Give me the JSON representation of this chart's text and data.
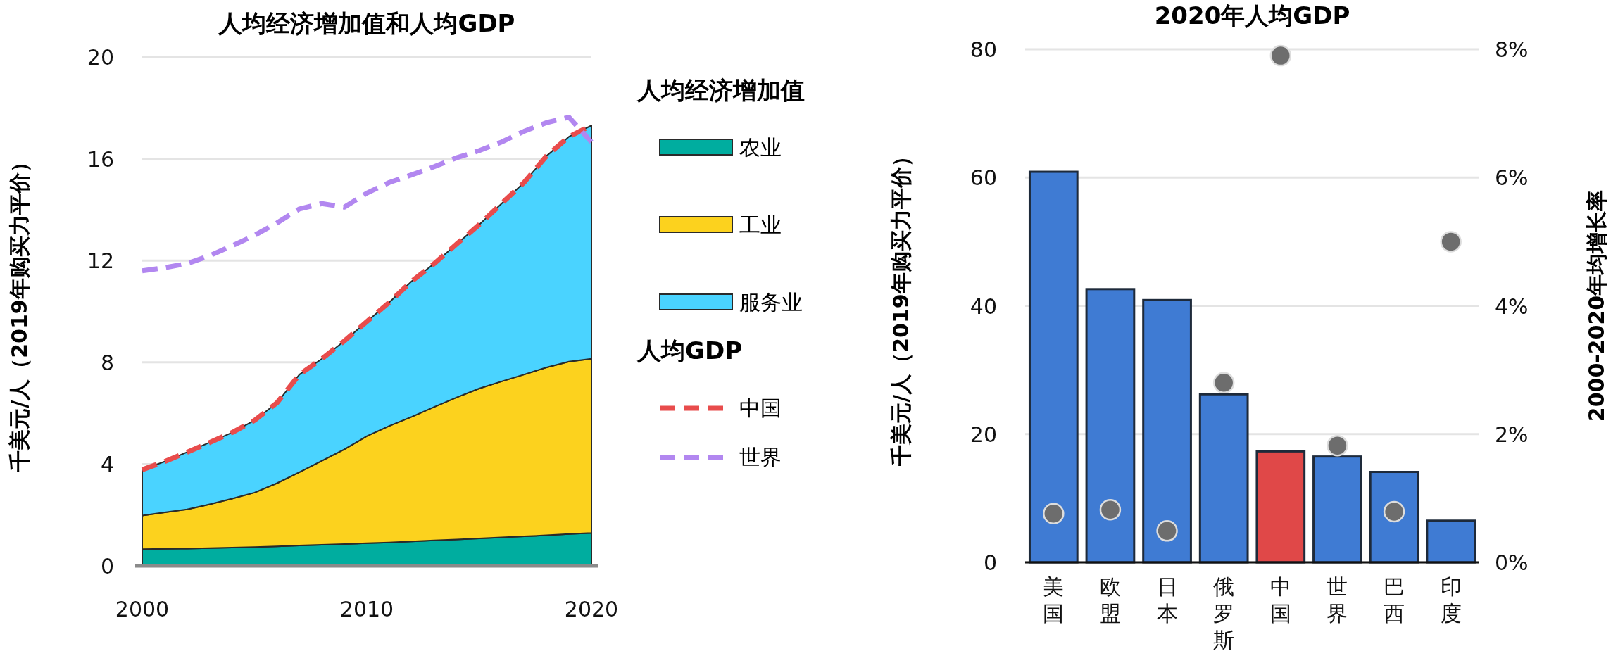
{
  "chart_data": [
    {
      "type": "area",
      "title": "人均经济增加值和人均GDP",
      "ylabel": "千美元/人（2019年购买力平价）",
      "x": [
        2000,
        2001,
        2002,
        2003,
        2004,
        2005,
        2006,
        2007,
        2008,
        2009,
        2010,
        2011,
        2012,
        2013,
        2014,
        2015,
        2016,
        2017,
        2018,
        2019,
        2020
      ],
      "xlim": [
        2000,
        2020
      ],
      "xticks": [
        2000,
        2010,
        2020
      ],
      "ylim": [
        0,
        20
      ],
      "yticks": [
        0,
        4,
        8,
        12,
        16,
        20
      ],
      "grid": "y",
      "stacked": true,
      "legend": "right",
      "legend_title": "人均经济增加值",
      "annotations": [
        "人均GDP"
      ],
      "series": [
        {
          "name": "农业",
          "color": "#00ad9f",
          "values": [
            0.66,
            0.67,
            0.68,
            0.7,
            0.72,
            0.74,
            0.77,
            0.8,
            0.83,
            0.86,
            0.89,
            0.92,
            0.96,
            1.0,
            1.04,
            1.08,
            1.12,
            1.16,
            1.2,
            1.25,
            1.29
          ]
        },
        {
          "name": "工业",
          "color": "#fcd21e",
          "values": [
            1.32,
            1.43,
            1.54,
            1.72,
            1.92,
            2.14,
            2.48,
            2.88,
            3.3,
            3.72,
            4.21,
            4.58,
            4.9,
            5.25,
            5.58,
            5.89,
            6.13,
            6.36,
            6.6,
            6.78,
            6.85
          ]
        },
        {
          "name": "服务业",
          "color": "#4ad3ff",
          "values": [
            1.8,
            2.0,
            2.25,
            2.43,
            2.6,
            2.84,
            3.16,
            3.84,
            4.01,
            4.26,
            4.5,
            4.86,
            5.33,
            5.63,
            6.03,
            6.44,
            6.99,
            7.55,
            8.31,
            8.84,
            9.17
          ]
        },
        {
          "name": "中国",
          "type": "line",
          "line_style": "dashed",
          "color": "#e84c4c",
          "values": [
            3.78,
            4.1,
            4.47,
            4.85,
            5.24,
            5.72,
            6.41,
            7.52,
            8.14,
            8.84,
            9.6,
            10.36,
            11.19,
            11.88,
            12.65,
            13.41,
            14.24,
            15.07,
            16.11,
            16.87,
            17.31
          ]
        },
        {
          "name": "世界",
          "type": "line",
          "line_style": "dashed",
          "color": "#b287f0",
          "values": [
            11.6,
            11.72,
            11.88,
            12.19,
            12.58,
            12.99,
            13.48,
            14.03,
            14.24,
            14.1,
            14.65,
            15.07,
            15.37,
            15.69,
            16.04,
            16.32,
            16.66,
            17.08,
            17.42,
            17.63,
            16.66
          ]
        }
      ]
    },
    {
      "type": "bar",
      "title": "2020年人均GDP",
      "ylabel": "千美元/人（2019年购买力平价）",
      "y2label": "2000-2020年均增长率",
      "categories": [
        "美国",
        "欧盟",
        "日本",
        "俄罗斯",
        "中国",
        "世界",
        "巴西",
        "印度"
      ],
      "ylim": [
        0,
        80
      ],
      "yticks": [
        0,
        20,
        40,
        60,
        80
      ],
      "y2lim": [
        0,
        8
      ],
      "y2ticks": [
        {
          "value": 0,
          "label": "0%"
        },
        {
          "value": 2,
          "label": "2%"
        },
        {
          "value": 4,
          "label": "4%"
        },
        {
          "value": 6,
          "label": "6%"
        },
        {
          "value": 8,
          "label": "8%"
        }
      ],
      "grid": "y",
      "series": [
        {
          "type": "bar",
          "colors": [
            "#3f7bd3",
            "#3f7bd3",
            "#3f7bd3",
            "#3f7bd3",
            "#e04848",
            "#3f7bd3",
            "#3f7bd3",
            "#3f7bd3"
          ],
          "values": [
            60.9,
            42.6,
            40.9,
            26.2,
            17.3,
            16.5,
            14.1,
            6.5
          ]
        },
        {
          "type": "scatter",
          "axis": "y2",
          "marker": "circle",
          "color": "#6d6d6d",
          "values": [
            0.76,
            0.82,
            0.49,
            2.8,
            7.9,
            1.82,
            0.79,
            5.0
          ]
        }
      ]
    }
  ]
}
